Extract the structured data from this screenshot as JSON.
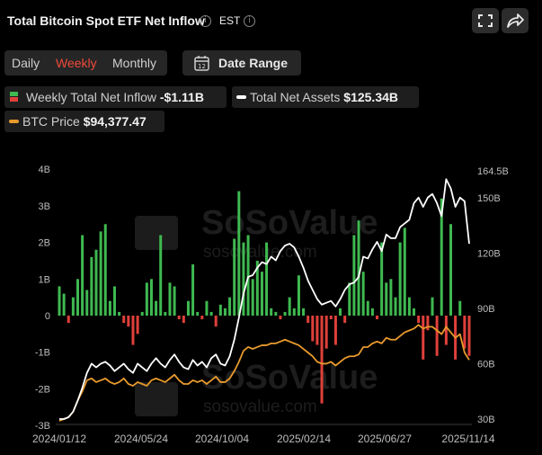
{
  "header": {
    "title": "Total Bitcoin Spot ETF Net Inflow",
    "timezone": "EST",
    "info_icon": "i"
  },
  "tabs": [
    {
      "label": "Daily",
      "active": false
    },
    {
      "label": "Weekly",
      "active": true
    },
    {
      "label": "Monthly",
      "active": false
    }
  ],
  "date_range": {
    "label": "Date Range",
    "icon": "calendar-icon",
    "day": "12"
  },
  "legend": {
    "inflow": {
      "label": "Weekly Total Net Inflow",
      "value": "-$1.11B"
    },
    "assets": {
      "label": "Total Net Assets",
      "value": "$125.34B"
    },
    "btc": {
      "label": "BTC Price",
      "value": "$94,377.47"
    }
  },
  "colors": {
    "positive": "#3fb950",
    "negative": "#e0403a",
    "assets_line": "#ffffff",
    "btc_line": "#e89a2c",
    "active_tab": "#f04a3a"
  },
  "watermark": {
    "brand": "SoSoValue",
    "site": "sosovalue.com"
  },
  "chart_data": {
    "type": "bar",
    "title": "",
    "x_ticks": [
      "2024/01/12",
      "2024/05/24",
      "2024/10/04",
      "2025/02/14",
      "2025/06/27",
      "2025/11/14"
    ],
    "left_axis": {
      "ticks": [
        "4B",
        "3B",
        "2B",
        "1B",
        "0",
        "-1B",
        "-2B",
        "-3B"
      ],
      "ylim": [
        -3,
        4
      ],
      "unit": "B USD"
    },
    "right_axis": {
      "ticks": [
        "164.5B",
        "150B",
        "120B",
        "90B",
        "60B",
        "30B"
      ],
      "ylim": [
        30,
        164.5
      ],
      "unit": "B USD"
    },
    "series": [
      {
        "name": "Weekly Total Net Inflow",
        "kind": "bar",
        "axis": "left",
        "values": [
          0.8,
          0.6,
          -0.2,
          0.5,
          1.0,
          2.2,
          0.7,
          1.6,
          1.8,
          2.3,
          2.5,
          0.4,
          0.8,
          0.1,
          -0.2,
          -0.3,
          -0.8,
          -0.5,
          0.1,
          0.9,
          1.0,
          0.4,
          2.2,
          0.1,
          0.9,
          0.8,
          -0.1,
          -0.2,
          0.4,
          1.4,
          0.1,
          -0.1,
          0.4,
          0.1,
          -0.3,
          0.3,
          0.2,
          0.5,
          2.1,
          3.4,
          2.0,
          2.2,
          1.0,
          1.5,
          1.2,
          2.0,
          0.2,
          0.1,
          -0.1,
          0.1,
          0.5,
          0.2,
          1.1,
          0.2,
          -0.2,
          -0.7,
          -0.8,
          -2.4,
          -0.9,
          -0.1,
          -0.8,
          0.2,
          -0.2,
          0.9,
          2.2,
          2.6,
          1.2,
          0.4,
          0.2,
          -0.1,
          2.0,
          0.9,
          1.0,
          0.5,
          2.0,
          2.4,
          0.5,
          0.2,
          -0.2,
          -1.2,
          -0.4,
          0.5,
          -1.1,
          3.2,
          -0.8,
          2.5,
          -1.2,
          0.4,
          -0.9,
          -1.1
        ]
      },
      {
        "name": "Total Net Assets",
        "kind": "line",
        "axis": "right",
        "values": [
          30,
          30,
          31,
          34,
          40,
          47,
          55,
          60,
          58,
          60,
          61,
          59,
          56,
          58,
          60,
          57,
          55,
          60,
          58,
          56,
          60,
          63,
          60,
          58,
          62,
          65,
          61,
          58,
          57,
          62,
          59,
          61,
          58,
          63,
          65,
          60,
          59,
          64,
          73,
          85,
          98,
          107,
          108,
          112,
          115,
          114,
          118,
          116,
          121,
          124,
          125,
          123,
          118,
          112,
          105,
          100,
          95,
          92,
          93,
          94,
          91,
          95,
          100,
          103,
          104,
          107,
          118,
          117,
          122,
          126,
          121,
          130,
          128,
          128,
          134,
          136,
          138,
          147,
          150,
          145,
          150,
          152,
          147,
          140,
          160,
          155,
          145,
          150,
          148,
          125
        ]
      },
      {
        "name": "BTC Price",
        "kind": "line",
        "axis": "right",
        "values": [
          29,
          30,
          31,
          34,
          40,
          45,
          51,
          52,
          50,
          51,
          52,
          50,
          49,
          50,
          52,
          49,
          48,
          50,
          49,
          48,
          51,
          52,
          51,
          50,
          52,
          54,
          51,
          49,
          49,
          51,
          50,
          51,
          49,
          51,
          53,
          50,
          50,
          52,
          56,
          61,
          67,
          69,
          68,
          69,
          70,
          70,
          71,
          71,
          72,
          73,
          72,
          71,
          70,
          68,
          66,
          64,
          61,
          60,
          60,
          61,
          59,
          61,
          63,
          64,
          64,
          65,
          69,
          69,
          71,
          72,
          71,
          74,
          73,
          73,
          75,
          77,
          78,
          79,
          81,
          79,
          80,
          80,
          78,
          76,
          80,
          77,
          74,
          76,
          66,
          62
        ]
      }
    ],
    "grid": false,
    "legend_position": "top-left"
  }
}
